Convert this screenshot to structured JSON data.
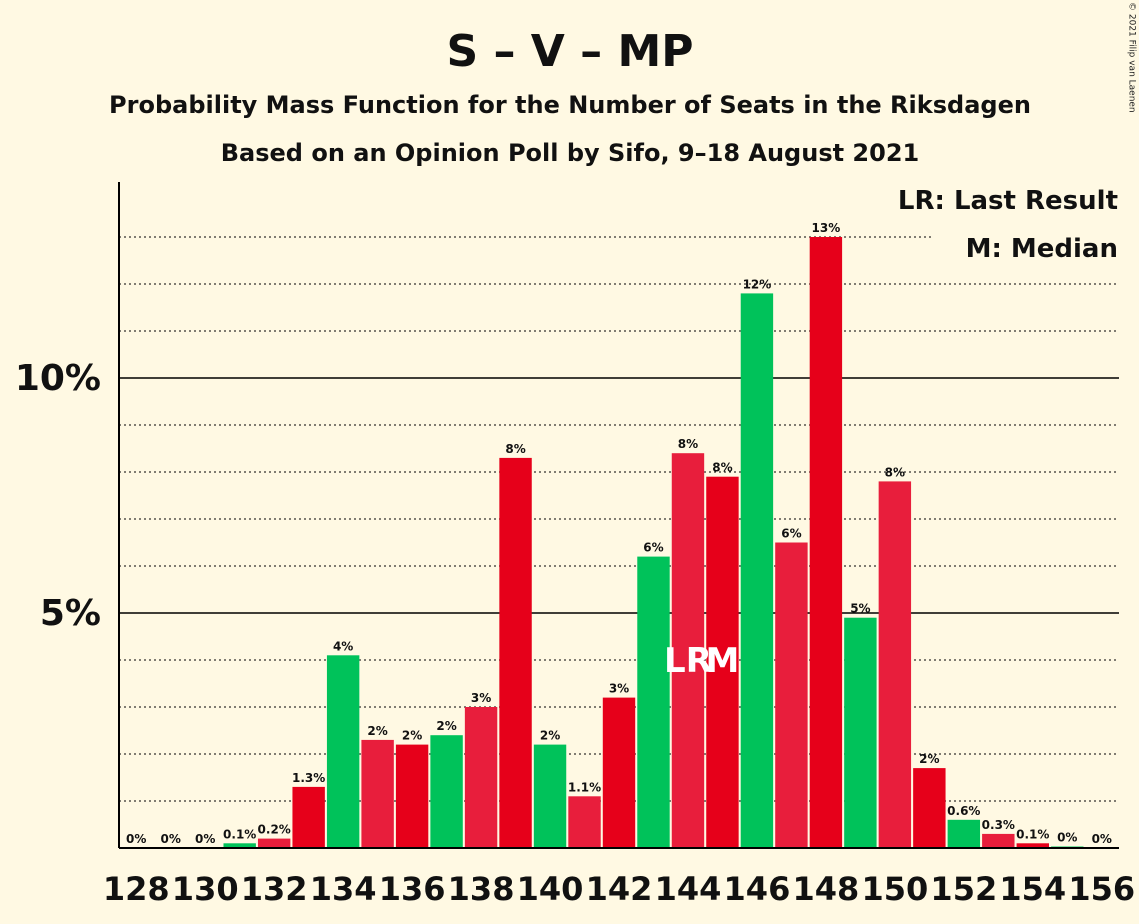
{
  "copyright": "© 2021 Filip van Laenen",
  "chart_data": {
    "type": "bar",
    "title": "S – V – MP",
    "subtitle": "Probability Mass Function for the Number of Seats in the Riksdagen",
    "subtitle2": "Based on an Opinion Poll by Sifo, 9–18 August 2021",
    "legend": [
      "LR: Last Result",
      "M: Median"
    ],
    "x": [
      128,
      129,
      130,
      131,
      132,
      133,
      134,
      135,
      136,
      137,
      138,
      139,
      140,
      141,
      142,
      143,
      144,
      145,
      146,
      147,
      148,
      149,
      150,
      151,
      152,
      153,
      154,
      155,
      156
    ],
    "values": [
      0,
      0,
      0,
      0.1,
      0.2,
      1.3,
      4.1,
      2.3,
      2.2,
      2.4,
      3.0,
      8.3,
      2.2,
      1.1,
      3.2,
      6.2,
      8.4,
      7.9,
      11.8,
      6.5,
      13.0,
      4.9,
      7.8,
      1.7,
      0.6,
      0.3,
      0.1,
      0.02,
      0
    ],
    "labels": [
      "0%",
      "0%",
      "0%",
      "0.1%",
      "0.2%",
      "1.3%",
      "4%",
      "2%",
      "2%",
      "2%",
      "3%",
      "8%",
      "2%",
      "1.1%",
      "3%",
      "6%",
      "8%",
      "8%",
      "12%",
      "6%",
      "13%",
      "5%",
      "8%",
      "2%",
      "0.6%",
      "0.3%",
      "0.1%",
      "0%",
      "0%"
    ],
    "colors": [
      "#E6001A",
      "#00C25A",
      "#E81E3C",
      "#00C25A",
      "#E81E3C",
      "#E6001A",
      "#00C25A",
      "#E81E3C",
      "#E6001A",
      "#00C25A",
      "#E81E3C",
      "#E6001A",
      "#00C25A",
      "#E81E3C",
      "#E6001A",
      "#00C25A",
      "#E81E3C",
      "#E6001A",
      "#00C25A",
      "#E81E3C",
      "#E6001A",
      "#00C25A",
      "#E81E3C",
      "#E6001A",
      "#00C25A",
      "#E81E3C",
      "#E6001A",
      "#00C25A",
      "#E81E3C"
    ],
    "xticks": [
      128,
      130,
      132,
      134,
      136,
      138,
      140,
      142,
      144,
      146,
      148,
      150,
      152,
      154,
      156
    ],
    "yticks": [
      {
        "value": 5,
        "label": "5%"
      },
      {
        "value": 10,
        "label": "10%"
      }
    ],
    "ylim": [
      0,
      13
    ],
    "markers": [
      {
        "seat": 144,
        "text": "LR"
      },
      {
        "seat": 145,
        "text": "M"
      }
    ]
  }
}
